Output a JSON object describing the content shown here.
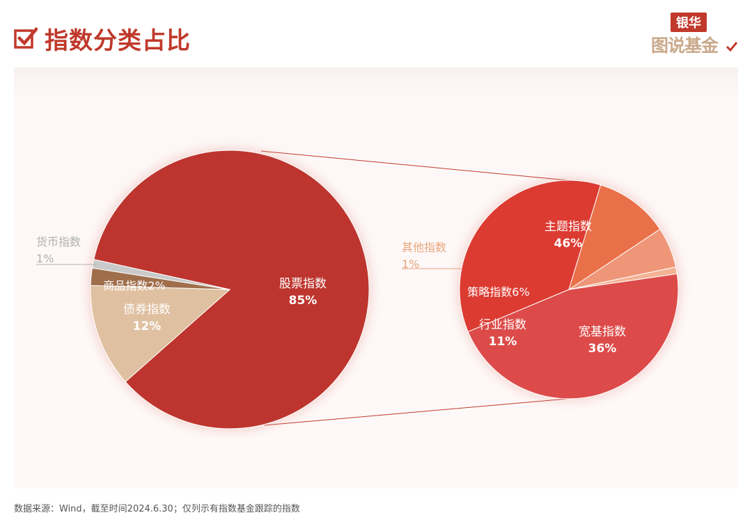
{
  "header": {
    "title": "指数分类占比",
    "logo_top": "银华",
    "logo_bottom": "图说基金"
  },
  "footer": {
    "source": "数据来源：Wind，截至时间2024.6.30；仅列示有指数基金跟踪的指数"
  },
  "chart_data": [
    {
      "type": "pie",
      "slices": [
        {
          "name": "股票指数",
          "value": 85,
          "label": "85%",
          "color": "#bd362d"
        },
        {
          "name": "债券指数",
          "value": 12,
          "label": "12%",
          "color": "#dfc0a0"
        },
        {
          "name": "商品指数",
          "value": 2,
          "label": "2%",
          "color": "#9f6e4b"
        },
        {
          "name": "货币指数",
          "value": 1,
          "label": "1%",
          "color": "#c9c9c9"
        }
      ]
    },
    {
      "type": "pie",
      "slices": [
        {
          "name": "主题指数",
          "value": 46,
          "label": "46%",
          "color": "#dc4c4a"
        },
        {
          "name": "宽基指数",
          "value": 36,
          "label": "36%",
          "color": "#dc3b33"
        },
        {
          "name": "行业指数",
          "value": 11,
          "label": "11%",
          "color": "#ea7048"
        },
        {
          "name": "策略指数",
          "value": 6,
          "label": "6%",
          "color": "#ef9678"
        },
        {
          "name": "其他指数",
          "value": 1,
          "label": "1%",
          "color": "#f4b394"
        }
      ]
    }
  ],
  "colors": {
    "accent": "#c0392b",
    "muted_label": "#b0b0b0",
    "other_label": "#e8a47a"
  }
}
